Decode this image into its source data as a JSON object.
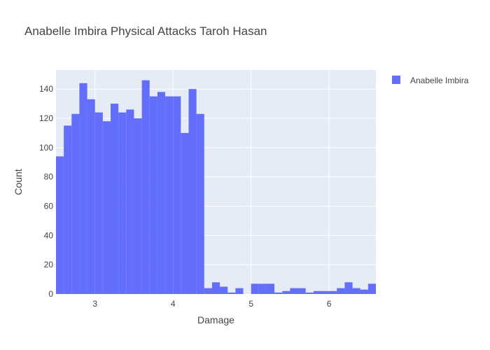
{
  "chart_data": {
    "type": "bar",
    "title": "Anabelle Imbira Physical Attacks Taroh Hasan",
    "xlabel": "Damage",
    "ylabel": "Count",
    "xlim": [
      2.5,
      6.6
    ],
    "ylim": [
      0,
      153
    ],
    "x_ticks": [
      3,
      4,
      5,
      6
    ],
    "y_ticks": [
      0,
      20,
      40,
      60,
      80,
      100,
      120,
      140
    ],
    "grid": true,
    "legend": {
      "position": "top-right",
      "entries": [
        "Anabelle Imbira"
      ]
    },
    "bin_width": 0.1,
    "series": [
      {
        "name": "Anabelle Imbira",
        "color": "#636efa",
        "x": [
          2.5,
          2.6,
          2.7,
          2.8,
          2.9,
          3.0,
          3.1,
          3.2,
          3.3,
          3.4,
          3.5,
          3.6,
          3.7,
          3.8,
          3.9,
          4.0,
          4.1,
          4.2,
          4.3,
          4.4,
          4.5,
          4.6,
          4.7,
          4.8,
          4.9,
          5.0,
          5.1,
          5.2,
          5.3,
          5.4,
          5.5,
          5.6,
          5.7,
          5.8,
          5.9,
          6.0,
          6.1,
          6.2,
          6.3,
          6.4,
          6.5
        ],
        "values": [
          94,
          115,
          123,
          144,
          133,
          124,
          118,
          130,
          124,
          126,
          120,
          146,
          135,
          138,
          135,
          135,
          110,
          140,
          123,
          4,
          8,
          5,
          1,
          4,
          0,
          7,
          7,
          7,
          1,
          2,
          4,
          4,
          1,
          2,
          2,
          2,
          4,
          8,
          4,
          3,
          7
        ]
      }
    ]
  }
}
